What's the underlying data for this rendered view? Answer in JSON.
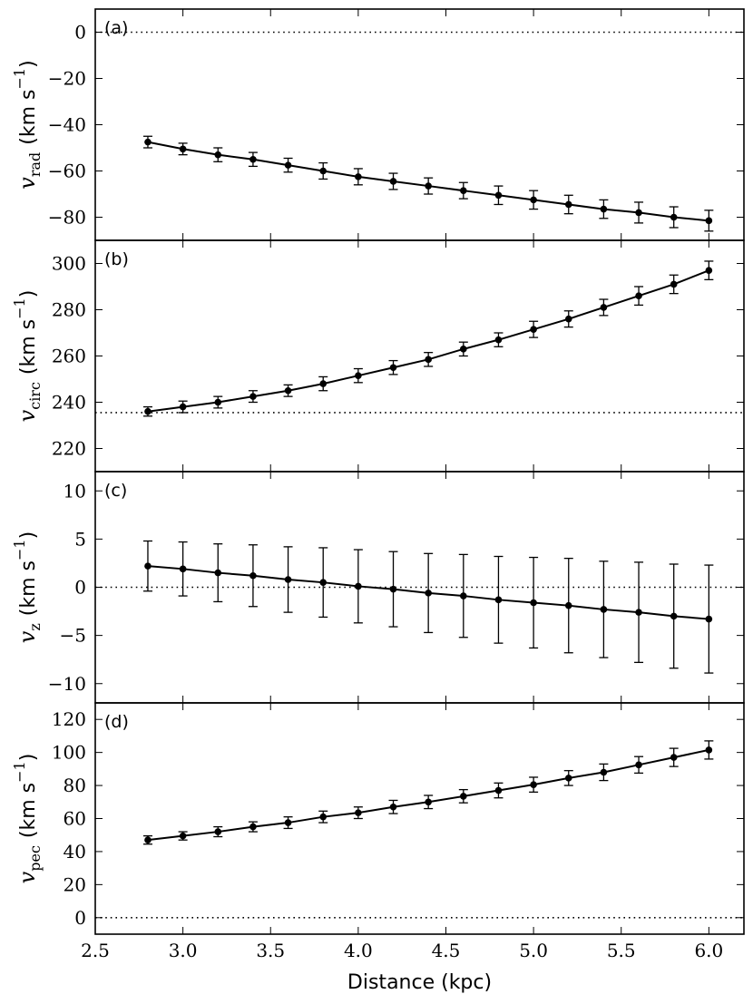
{
  "chart_data": [
    {
      "panel_label": "(a)",
      "type": "line",
      "ylabel": {
        "symbol": "v",
        "subscript": "rad",
        "unit": "(km s",
        "unit_exp": "−1",
        "unit_close": ")"
      },
      "ylim": [
        -90,
        10
      ],
      "yticks": [
        0,
        -20,
        -40,
        -60,
        -80
      ],
      "reference_line": 0,
      "x": [
        2.8,
        3.0,
        3.2,
        3.4,
        3.6,
        3.8,
        4.0,
        4.2,
        4.4,
        4.6,
        4.8,
        5.0,
        5.2,
        5.4,
        5.6,
        5.8,
        6.0
      ],
      "y": [
        -47.5,
        -50.5,
        -53,
        -55,
        -57.5,
        -60,
        -62.5,
        -64.5,
        -66.5,
        -68.5,
        -70.5,
        -72.5,
        -74.5,
        -76.5,
        -78,
        -80,
        -81.5
      ],
      "yerr": [
        2.5,
        2.5,
        3,
        3,
        3,
        3.5,
        3.5,
        3.5,
        3.5,
        3.5,
        4,
        4,
        4,
        4,
        4.5,
        4.5,
        4.5
      ]
    },
    {
      "panel_label": "(b)",
      "type": "line",
      "ylabel": {
        "symbol": "v",
        "subscript": "circ",
        "unit": "(km s",
        "unit_exp": "−1",
        "unit_close": ")"
      },
      "ylim": [
        210,
        310
      ],
      "yticks": [
        220,
        240,
        260,
        280,
        300
      ],
      "reference_line": 235.5,
      "x": [
        2.8,
        3.0,
        3.2,
        3.4,
        3.6,
        3.8,
        4.0,
        4.2,
        4.4,
        4.6,
        4.8,
        5.0,
        5.2,
        5.4,
        5.6,
        5.8,
        6.0
      ],
      "y": [
        236,
        238,
        240,
        242.5,
        245,
        248,
        251.5,
        255,
        258.5,
        263,
        267,
        271.5,
        276,
        281,
        286,
        291,
        297
      ],
      "yerr": [
        2,
        2.5,
        2.5,
        2.5,
        2.5,
        3,
        3,
        3,
        3,
        3,
        3,
        3.5,
        3.5,
        3.5,
        4,
        4,
        4
      ]
    },
    {
      "panel_label": "(c)",
      "type": "line",
      "ylabel": {
        "symbol": "v",
        "subscript": "z",
        "unit": "(km s",
        "unit_exp": "−1",
        "unit_close": ")"
      },
      "ylim": [
        -12,
        12
      ],
      "yticks": [
        10,
        5,
        0,
        -5,
        -10
      ],
      "reference_line": 0,
      "x": [
        2.8,
        3.0,
        3.2,
        3.4,
        3.6,
        3.8,
        4.0,
        4.2,
        4.4,
        4.6,
        4.8,
        5.0,
        5.2,
        5.4,
        5.6,
        5.8,
        6.0
      ],
      "y": [
        2.2,
        1.9,
        1.5,
        1.2,
        0.8,
        0.5,
        0.1,
        -0.2,
        -0.6,
        -0.9,
        -1.3,
        -1.6,
        -1.9,
        -2.3,
        -2.6,
        -3.0,
        -3.3
      ],
      "yerr": [
        2.6,
        2.8,
        3.0,
        3.2,
        3.4,
        3.6,
        3.8,
        3.9,
        4.1,
        4.3,
        4.5,
        4.7,
        4.9,
        5.0,
        5.2,
        5.4,
        5.6
      ]
    },
    {
      "panel_label": "(d)",
      "type": "line",
      "ylabel": {
        "symbol": "v",
        "subscript": "pec",
        "unit": "(km s",
        "unit_exp": "−1",
        "unit_close": ")"
      },
      "ylim": [
        -10,
        130
      ],
      "yticks": [
        120,
        100,
        80,
        60,
        40,
        20,
        0
      ],
      "reference_line": 0,
      "x": [
        2.8,
        3.0,
        3.2,
        3.4,
        3.6,
        3.8,
        4.0,
        4.2,
        4.4,
        4.6,
        4.8,
        5.0,
        5.2,
        5.4,
        5.6,
        5.8,
        6.0
      ],
      "y": [
        47,
        49.5,
        52,
        55,
        57.5,
        61,
        63.5,
        67,
        70,
        73.5,
        77,
        80.5,
        84.5,
        88,
        92.5,
        97,
        101.5
      ],
      "yerr": [
        2.5,
        2.5,
        3,
        3,
        3.5,
        3.5,
        3.5,
        4,
        4,
        4,
        4.5,
        4.5,
        4.5,
        5,
        5,
        5.5,
        5.5
      ]
    }
  ],
  "xaxis": {
    "label": "Distance (kpc)",
    "xlim": [
      2.5,
      6.2
    ],
    "ticks": [
      2.5,
      3.0,
      3.5,
      4.0,
      4.5,
      5.0,
      5.5,
      6.0
    ],
    "tick_labels": [
      "2.5",
      "3.0",
      "3.5",
      "4.0",
      "4.5",
      "5.0",
      "5.5",
      "6.0"
    ]
  },
  "colors": {
    "line": "#000000",
    "marker": "#000000",
    "reference_line": "#000000"
  }
}
